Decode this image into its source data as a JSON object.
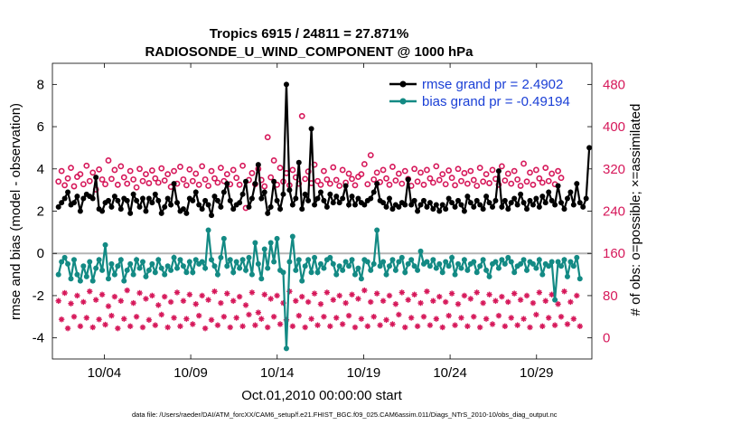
{
  "chart_data": {
    "type": "line",
    "title": "Tropics 6915 / 24811 = 27.871%",
    "subtitle": "RADIOSONDE_U_WIND_COMPONENT @ 1000 hPa",
    "xlabel": "Oct.01,2010 00:00:00 start",
    "ylabel": "rmse and bias (model - observation)",
    "ylabel_right": "# of obs: o=possible; ×=assimilated",
    "footer": "data file: /Users/raeder/DAI/ATM_forcXX/CAM6_setup/f.e21.FHIST_BGC.f09_025.CAM6assim.011/Diags_NTrS_2010-10/obs_diag_output.nc",
    "xlim": [
      1.0,
      32.2
    ],
    "x_ticks": [
      4,
      9,
      14,
      19,
      24,
      29
    ],
    "x_tick_labels": [
      "10/04",
      "10/09",
      "10/14",
      "10/19",
      "10/24",
      "10/29"
    ],
    "ylim": [
      -5,
      9
    ],
    "y_ticks": [
      -4,
      -2,
      0,
      2,
      4,
      6,
      8
    ],
    "y_tick_labels": [
      "-4",
      "-2",
      "0",
      "2",
      "4",
      "6",
      "8"
    ],
    "ylim_right": [
      -40,
      520
    ],
    "y_right_ticks": [
      0,
      80,
      160,
      240,
      320,
      400,
      480
    ],
    "y_right_tick_labels": [
      "0",
      "80",
      "160",
      "240",
      "320",
      "400",
      "480"
    ],
    "colors": {
      "rmse": "#000000",
      "bias": "#138a84",
      "obs": "#d6185a",
      "legend_text": "#1a3fd6",
      "zero_line": "#b5b5b5"
    },
    "series": [
      {
        "name": "rmse",
        "legend": "rmse grand pr = 2.4902",
        "values": [
          2.2,
          2.4,
          2.6,
          2.9,
          2.3,
          2.4,
          2.7,
          2.0,
          2.6,
          2.8,
          2.7,
          2.6,
          3.6,
          2.1,
          2.0,
          2.4,
          2.5,
          2.2,
          2.7,
          2.5,
          2.1,
          2.6,
          2.5,
          1.9,
          2.8,
          2.5,
          2.2,
          2.6,
          2.0,
          2.6,
          2.4,
          2.8,
          2.5,
          1.9,
          2.2,
          2.6,
          2.3,
          3.3,
          2.4,
          2.0,
          2.1,
          1.9,
          2.6,
          2.5,
          2.9,
          2.3,
          2.1,
          2.5,
          2.3,
          1.8,
          2.7,
          2.5,
          2.2,
          2.9,
          3.3,
          2.5,
          2.1,
          2.3,
          2.4,
          2.8,
          3.4,
          2.2,
          2.6,
          3.3,
          4.2,
          2.6,
          2.9,
          1.9,
          2.2,
          3.4,
          2.5,
          2.1,
          2.8,
          8.0,
          3.0,
          2.3,
          2.6,
          4.3,
          2.1,
          2.8,
          2.5,
          5.9,
          2.3,
          2.6,
          2.9,
          2.5,
          2.2,
          2.8,
          2.4,
          2.7,
          2.4,
          2.6,
          3.2,
          2.3,
          2.7,
          2.3,
          2.6,
          2.4,
          2.3,
          2.5,
          2.6,
          2.9,
          3.3,
          2.5,
          2.4,
          2.2,
          2.6,
          2.1,
          2.3,
          2.2,
          2.4,
          2.3,
          3.5,
          2.3,
          2.5,
          2.0,
          2.3,
          2.5,
          2.2,
          2.4,
          2.1,
          2.3,
          2.0,
          2.3,
          2.1,
          2.6,
          2.4,
          2.2,
          2.5,
          2.3,
          2.0,
          2.7,
          2.4,
          2.2,
          2.5,
          2.3,
          2.1,
          2.7,
          2.4,
          2.2,
          2.5,
          3.9,
          2.2,
          2.5,
          2.1,
          2.4,
          2.6,
          2.3,
          2.8,
          2.4,
          2.1,
          2.5,
          2.3,
          2.6,
          2.2,
          2.7,
          2.4,
          2.9,
          2.5,
          2.3,
          3.2,
          2.4,
          2.1,
          2.6,
          2.9,
          2.3,
          3.3,
          2.4,
          2.2,
          2.6,
          5.0
        ]
      },
      {
        "name": "bias",
        "legend": "bias grand pr = -0.49194",
        "values": [
          -1.0,
          -0.4,
          -0.2,
          -0.5,
          -1.2,
          -0.3,
          -1.0,
          -1.3,
          -0.6,
          -1.1,
          -0.4,
          -1.3,
          -0.7,
          -0.3,
          -0.8,
          0.4,
          -1.2,
          -0.5,
          -1.0,
          -0.6,
          -0.3,
          -1.3,
          -0.8,
          -0.5,
          -1.0,
          -0.3,
          -0.7,
          -0.4,
          -1.1,
          -0.8,
          -0.5,
          -0.9,
          -0.3,
          -0.7,
          -1.0,
          -0.6,
          -0.8,
          -0.2,
          -0.7,
          -0.3,
          -0.6,
          -0.9,
          -0.4,
          -0.9,
          -0.3,
          -0.5,
          -0.4,
          -0.7,
          1.1,
          -0.3,
          -0.6,
          -1.0,
          -0.2,
          0.7,
          -0.6,
          -0.3,
          -0.9,
          -0.4,
          -0.7,
          -0.3,
          -0.8,
          -0.2,
          -1.0,
          0.5,
          -0.5,
          -1.2,
          0.2,
          -0.7,
          0.5,
          -0.4,
          0.7,
          -0.8,
          -0.9,
          -4.5,
          -0.4,
          0.8,
          -0.8,
          -0.3,
          -1.3,
          -0.6,
          -0.3,
          -0.9,
          -0.2,
          -0.9,
          -0.5,
          -0.7,
          -0.3,
          -0.2,
          -0.5,
          -1.0,
          -0.6,
          -0.8,
          -0.4,
          -0.6,
          -0.3,
          -1.0,
          -0.7,
          -1.2,
          -0.3,
          -0.4,
          -0.8,
          -0.5,
          1.1,
          -0.6,
          -0.4,
          -1.0,
          -0.6,
          -0.3,
          -0.8,
          -0.4,
          -0.2,
          -0.9,
          -0.5,
          -0.3,
          -0.6,
          -0.8,
          0.1,
          -0.5,
          -0.4,
          -0.6,
          -0.3,
          -0.7,
          -0.5,
          -0.9,
          -0.4,
          -0.6,
          -0.2,
          -1.0,
          -0.5,
          -0.7,
          -0.3,
          -0.8,
          -0.5,
          -0.4,
          -0.9,
          -0.6,
          -0.3,
          -0.8,
          -1.1,
          -0.5,
          -0.4,
          -0.7,
          -0.3,
          -0.5,
          -0.2,
          -0.4,
          -0.9,
          -0.6,
          -0.5,
          -0.3,
          -0.8,
          -0.4,
          -0.5,
          -0.7,
          -0.3,
          -1.0,
          -0.5,
          -0.6,
          -0.4,
          -2.2,
          -0.4,
          -0.6,
          -0.3,
          -1.1,
          -0.4,
          -0.6,
          -0.2,
          -1.2
        ]
      },
      {
        "name": "obs possible",
        "marker": "o",
        "values": [
          296,
          316,
          289,
          302,
          322,
          287,
          305,
          310,
          291,
          326,
          297,
          313,
          281,
          319,
          300,
          291,
          336,
          301,
          318,
          290,
          325,
          304,
          292,
          316,
          300,
          285,
          320,
          297,
          310,
          293,
          317,
          302,
          294,
          321,
          298,
          310,
          286,
          316,
          292,
          324,
          300,
          289,
          319,
          297,
          311,
          290,
          325,
          300,
          288,
          316,
          302,
          294,
          322,
          297,
          310,
          291,
          318,
          303,
          290,
          326,
          246,
          299,
          312,
          291,
          320,
          299,
          287,
          380,
          304,
          336,
          290,
          322,
          296,
          312,
          289,
          318,
          304,
          292,
          420,
          301,
          315,
          293,
          328,
          297,
          290,
          316,
          300,
          292,
          323,
          299,
          288,
          318,
          294,
          311,
          301,
          289,
          305,
          310,
          329,
          291,
          346,
          300,
          313,
          295,
          318,
          302,
          290,
          324,
          298,
          311,
          292,
          316,
          301,
          288,
          320,
          296,
          313,
          290,
          318,
          302,
          294,
          325,
          299,
          310,
          291,
          317,
          303,
          289,
          320,
          297,
          312,
          292,
          316,
          299,
          288,
          322,
          296,
          310,
          293,
          318,
          301,
          290,
          325,
          298,
          311,
          292,
          316,
          300,
          288,
          330,
          296,
          313,
          290,
          318,
          302,
          294,
          322,
          297,
          311,
          291,
          316,
          303
        ]
      },
      {
        "name": "obs assimilated",
        "marker": "×",
        "values": [
          70,
          35,
          85,
          18,
          65,
          40,
          80,
          22,
          68,
          38,
          88,
          20,
          72,
          35,
          82,
          25,
          60,
          42,
          78,
          18,
          70,
          36,
          90,
          22,
          66,
          40,
          85,
          20,
          74,
          34,
          80,
          24,
          62,
          44,
          78,
          20,
          68,
          38,
          86,
          22,
          70,
          36,
          82,
          26,
          64,
          42,
          80,
          18,
          72,
          34,
          88,
          24,
          66,
          40,
          84,
          20,
          70,
          38,
          78,
          22,
          62,
          44,
          86,
          24,
          48,
          36,
          82,
          20,
          74,
          40,
          80,
          26,
          66,
          34,
          88,
          22,
          70,
          42,
          78,
          20,
          68,
          36,
          84,
          24,
          64,
          40,
          86,
          22,
          72,
          38,
          80,
          26,
          66,
          42,
          82,
          20,
          74,
          36,
          90,
          22,
          68,
          40,
          84,
          24,
          70,
          34,
          80,
          26,
          64,
          44,
          86,
          20,
          72,
          38,
          82,
          22,
          66,
          40,
          88,
          24,
          70,
          36,
          78,
          20,
          68,
          42,
          84,
          24,
          64,
          38,
          80,
          22,
          74,
          40,
          86,
          20,
          66,
          36,
          82,
          26,
          70,
          42,
          78,
          22,
          68,
          38,
          84,
          24,
          72,
          36,
          80,
          20,
          66,
          44,
          86,
          22,
          70,
          38,
          82,
          24,
          64,
          40,
          88,
          26,
          68,
          36,
          80,
          22
        ]
      }
    ]
  }
}
